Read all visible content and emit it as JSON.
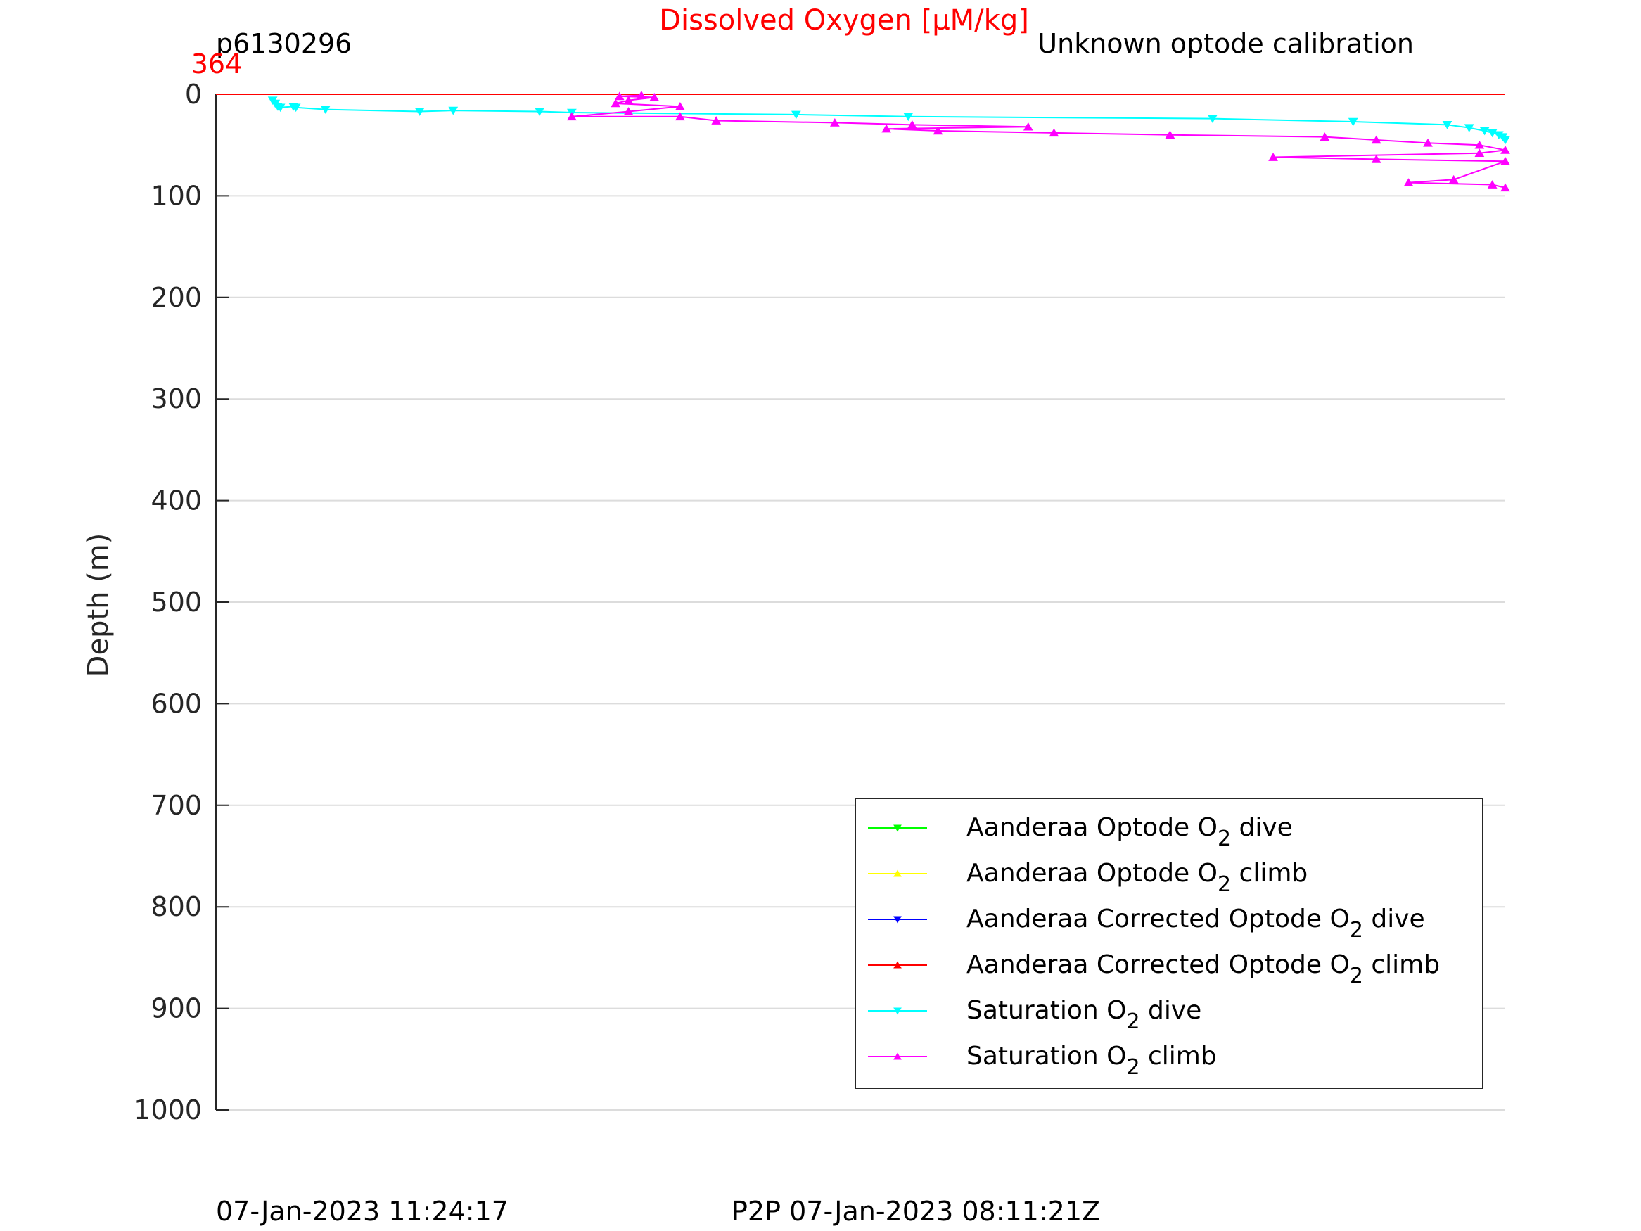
{
  "chart_data": {
    "type": "line",
    "title": "Dissolved Oxygen [μM/kg]",
    "title_color": "#ff0000",
    "top_left_label": "p6130296",
    "top_right_label": "Unknown optode calibration",
    "x_top_tick": "364",
    "x_top_tick_color": "#ff0000",
    "ylabel": "Depth (m)",
    "y_reversed": true,
    "ylim": [
      0,
      1000
    ],
    "yticks": [
      "0",
      "100",
      "200",
      "300",
      "400",
      "500",
      "600",
      "700",
      "800",
      "900",
      "1000"
    ],
    "xlim": [
      0,
      1
    ],
    "grid": "horizontal",
    "bottom_left_text": "07-Jan-2023 11:24:17",
    "bottom_center_text": "P2P 07-Jan-2023 08:11:21Z",
    "legend_position": "bottom-right",
    "series": [
      {
        "name": "Aanderaa Optode O",
        "sub": "2",
        "suffix": " dive",
        "color": "#00ff00",
        "marker": "down-triangle",
        "x": [],
        "y": []
      },
      {
        "name": "Aanderaa Optode O",
        "sub": "2",
        "suffix": " climb",
        "color": "#ffff00",
        "marker": "up-triangle",
        "x": [],
        "y": []
      },
      {
        "name": "Aanderaa Corrected Optode O",
        "sub": "2",
        "suffix": " dive",
        "color": "#0000ff",
        "marker": "down-triangle",
        "x": [],
        "y": []
      },
      {
        "name": "Aanderaa Corrected Optode O",
        "sub": "2",
        "suffix": " climb",
        "color": "#ff0000",
        "marker": "up-triangle",
        "line_only": true,
        "x": [
          0.0,
          1.0
        ],
        "y": [
          0,
          0
        ]
      },
      {
        "name": "Saturation O",
        "sub": "2",
        "suffix": " dive",
        "color": "#00ffff",
        "marker": "down-triangle",
        "x": [
          0.044,
          0.046,
          0.048,
          0.05,
          0.06,
          0.062,
          0.085,
          0.158,
          0.184,
          0.251,
          0.276,
          0.45,
          0.537,
          0.773,
          0.882,
          0.955,
          0.972,
          0.984,
          0.99,
          0.995,
          0.998,
          1.0
        ],
        "y": [
          6,
          9,
          12,
          13,
          12,
          13,
          15,
          17,
          16,
          17,
          18,
          20,
          22,
          24,
          27,
          30,
          33,
          36,
          38,
          40,
          42,
          45
        ]
      },
      {
        "name": "Saturation O",
        "sub": "2",
        "suffix": " climb",
        "color": "#ff00ff",
        "marker": "up-triangle",
        "x": [
          0.33,
          0.313,
          0.34,
          0.32,
          0.31,
          0.36,
          0.32,
          0.276,
          0.36,
          0.388,
          0.48,
          0.54,
          0.63,
          0.52,
          0.56,
          0.65,
          0.74,
          0.86,
          0.9,
          0.94,
          0.98,
          1.0,
          0.98,
          0.82,
          0.9,
          1.0,
          0.96,
          0.925,
          0.99,
          1.0
        ],
        "y": [
          1,
          2,
          3,
          6,
          9,
          12,
          17,
          22,
          22,
          26,
          28,
          30,
          32,
          34,
          36,
          38,
          40,
          42,
          45,
          48,
          50,
          55,
          58,
          62,
          64,
          66,
          84,
          87,
          89,
          92
        ]
      }
    ]
  }
}
